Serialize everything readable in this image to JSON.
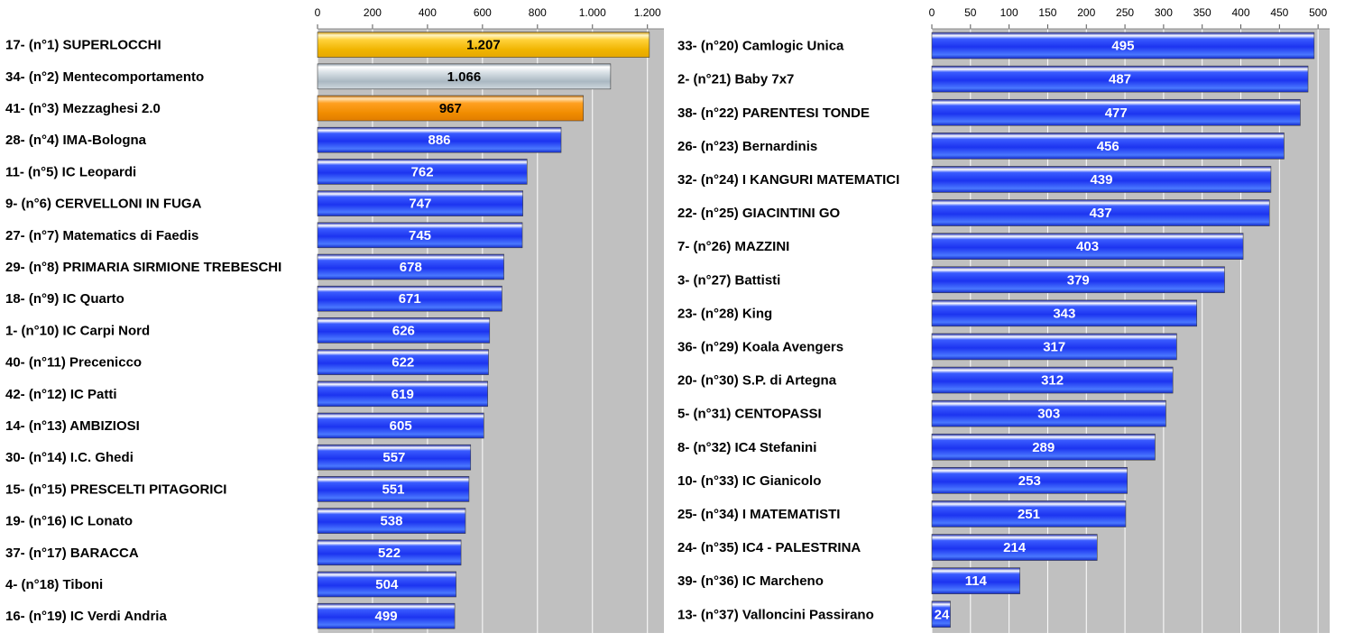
{
  "chart_data": [
    {
      "type": "bar",
      "orientation": "horizontal",
      "xlim": [
        0,
        1260
      ],
      "ticks": [
        0,
        200,
        400,
        600,
        800,
        1000,
        1200
      ],
      "tick_labels": [
        "0",
        "200",
        "400",
        "600",
        "800",
        "1.000",
        "1.200"
      ],
      "grid": true,
      "bars": [
        {
          "label": "17- (n°1) SUPERLOCCHI",
          "value": 1207,
          "value_label": "1.207",
          "style": "gold"
        },
        {
          "label": "34- (n°2) Mentecomportamento",
          "value": 1066,
          "value_label": "1.066",
          "style": "silver"
        },
        {
          "label": "41- (n°3) Mezzaghesi 2.0",
          "value": 967,
          "value_label": "967",
          "style": "bronze"
        },
        {
          "label": "28- (n°4) IMA-Bologna",
          "value": 886,
          "value_label": "886",
          "style": "blue"
        },
        {
          "label": "11- (n°5) IC Leopardi",
          "value": 762,
          "value_label": "762",
          "style": "blue"
        },
        {
          "label": "9- (n°6) CERVELLONI IN FUGA",
          "value": 747,
          "value_label": "747",
          "style": "blue"
        },
        {
          "label": "27- (n°7) Matematics di Faedis",
          "value": 745,
          "value_label": "745",
          "style": "blue"
        },
        {
          "label": "29- (n°8) PRIMARIA SIRMIONE TREBESCHI",
          "value": 678,
          "value_label": "678",
          "style": "blue"
        },
        {
          "label": "18- (n°9) IC Quarto",
          "value": 671,
          "value_label": "671",
          "style": "blue"
        },
        {
          "label": "1- (n°10) IC Carpi Nord",
          "value": 626,
          "value_label": "626",
          "style": "blue"
        },
        {
          "label": "40- (n°11) Precenicco",
          "value": 622,
          "value_label": "622",
          "style": "blue"
        },
        {
          "label": "42- (n°12) IC Patti",
          "value": 619,
          "value_label": "619",
          "style": "blue"
        },
        {
          "label": "14- (n°13) AMBIZIOSI",
          "value": 605,
          "value_label": "605",
          "style": "blue"
        },
        {
          "label": "30- (n°14) I.C. Ghedi",
          "value": 557,
          "value_label": "557",
          "style": "blue"
        },
        {
          "label": "15- (n°15) PRESCELTI PITAGORICI",
          "value": 551,
          "value_label": "551",
          "style": "blue"
        },
        {
          "label": "19- (n°16) IC Lonato",
          "value": 538,
          "value_label": "538",
          "style": "blue"
        },
        {
          "label": "37- (n°17) BARACCA",
          "value": 522,
          "value_label": "522",
          "style": "blue"
        },
        {
          "label": "4- (n°18) Tiboni",
          "value": 504,
          "value_label": "504",
          "style": "blue"
        },
        {
          "label": "16- (n°19) IC Verdi Andria",
          "value": 499,
          "value_label": "499",
          "style": "blue"
        }
      ]
    },
    {
      "type": "bar",
      "orientation": "horizontal",
      "xlim": [
        0,
        515
      ],
      "ticks": [
        0,
        50,
        100,
        150,
        200,
        250,
        300,
        350,
        400,
        450,
        500
      ],
      "tick_labels": [
        "0",
        "50",
        "100",
        "150",
        "200",
        "250",
        "300",
        "350",
        "400",
        "450",
        "500"
      ],
      "grid": true,
      "bars": [
        {
          "label": "33- (n°20) Camlogic Unica",
          "value": 495,
          "value_label": "495",
          "style": "blue"
        },
        {
          "label": "2- (n°21) Baby 7x7",
          "value": 487,
          "value_label": "487",
          "style": "blue"
        },
        {
          "label": "38- (n°22) PARENTESI TONDE",
          "value": 477,
          "value_label": "477",
          "style": "blue"
        },
        {
          "label": "26- (n°23) Bernardinis",
          "value": 456,
          "value_label": "456",
          "style": "blue"
        },
        {
          "label": "32- (n°24) I KANGURI MATEMATICI",
          "value": 439,
          "value_label": "439",
          "style": "blue"
        },
        {
          "label": "22- (n°25) GIACINTINI GO",
          "value": 437,
          "value_label": "437",
          "style": "blue"
        },
        {
          "label": "7- (n°26) MAZZINI",
          "value": 403,
          "value_label": "403",
          "style": "blue"
        },
        {
          "label": "3- (n°27) Battisti",
          "value": 379,
          "value_label": "379",
          "style": "blue"
        },
        {
          "label": "23- (n°28) King",
          "value": 343,
          "value_label": "343",
          "style": "blue"
        },
        {
          "label": "36- (n°29) Koala Avengers",
          "value": 317,
          "value_label": "317",
          "style": "blue"
        },
        {
          "label": "20- (n°30) S.P. di Artegna",
          "value": 312,
          "value_label": "312",
          "style": "blue"
        },
        {
          "label": "5- (n°31) CENTOPASSI",
          "value": 303,
          "value_label": "303",
          "style": "blue"
        },
        {
          "label": "8- (n°32) IC4 Stefanini",
          "value": 289,
          "value_label": "289",
          "style": "blue"
        },
        {
          "label": "10- (n°33) IC Gianicolo",
          "value": 253,
          "value_label": "253",
          "style": "blue"
        },
        {
          "label": "25- (n°34) I MATEMATISTI",
          "value": 251,
          "value_label": "251",
          "style": "blue"
        },
        {
          "label": "24- (n°35) IC4 - PALESTRINA",
          "value": 214,
          "value_label": "214",
          "style": "blue"
        },
        {
          "label": "39- (n°36) IC Marcheno",
          "value": 114,
          "value_label": "114",
          "style": "blue"
        },
        {
          "label": "13- (n°37) Valloncini Passirano",
          "value": 24,
          "value_label": "24",
          "style": "blue"
        }
      ]
    }
  ],
  "colors": {
    "plot_background": "#c0c0c0",
    "grid": "#ffffff",
    "gold": "#f0b400",
    "silver": "#b8c4cc",
    "bronze": "#f08c00",
    "blue": "#1c3cff",
    "value_text_light": "#ffffff",
    "value_text_dark": "#000000"
  }
}
